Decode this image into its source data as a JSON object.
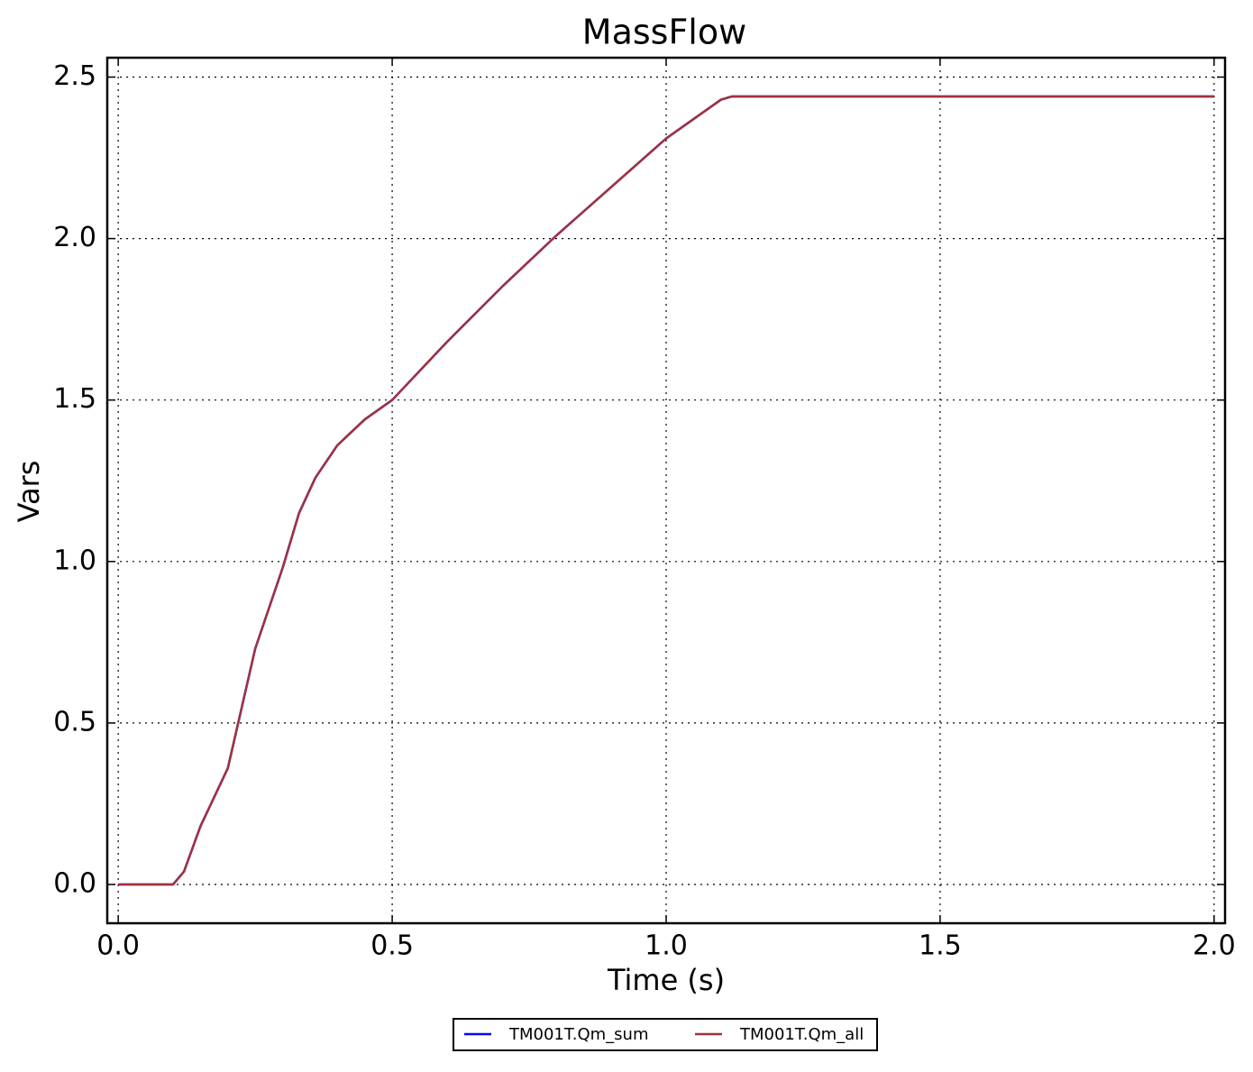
{
  "chart_data": {
    "type": "line",
    "title": "MassFlow",
    "x_label": "Time (s)",
    "y_label": "Vars",
    "x": [
      0,
      0.1,
      0.12,
      0.15,
      0.2,
      0.25,
      0.3,
      0.33,
      0.36,
      0.4,
      0.45,
      0.5,
      0.6,
      0.7,
      0.8,
      0.9,
      1.0,
      1.05,
      1.1,
      1.12,
      1.15,
      1.5,
      2.0
    ],
    "series": [
      {
        "name": "TM001T.Qm_sum",
        "color": "#0000ff",
        "values": [
          0,
          0,
          0.04,
          0.18,
          0.36,
          0.73,
          0.98,
          1.15,
          1.26,
          1.36,
          1.44,
          1.5,
          1.68,
          1.85,
          2.01,
          2.16,
          2.31,
          2.37,
          2.43,
          2.44,
          2.44,
          2.44,
          2.44
        ]
      },
      {
        "name": "TM001T.Qm_all",
        "color": "#a0323c",
        "values": [
          0,
          0,
          0.04,
          0.18,
          0.36,
          0.73,
          0.98,
          1.15,
          1.26,
          1.36,
          1.44,
          1.5,
          1.68,
          1.85,
          2.01,
          2.16,
          2.31,
          2.37,
          2.43,
          2.44,
          2.44,
          2.44,
          2.44
        ]
      }
    ],
    "xlim": [
      -0.02,
      2.02
    ],
    "ylim": [
      -0.12,
      2.56
    ],
    "xticks": [
      {
        "value": 0,
        "label": "0.0"
      },
      0.5,
      {
        "value": 1,
        "label": "1.0"
      },
      1.5,
      {
        "value": 2,
        "label": "2.0"
      }
    ],
    "yticks": [
      {
        "value": 0,
        "label": "0.0"
      },
      0.5,
      {
        "value": 1,
        "label": "1.0"
      },
      1.5,
      {
        "value": 2,
        "label": "2.0"
      },
      2.5
    ],
    "grid": true,
    "legend": "bottom"
  }
}
